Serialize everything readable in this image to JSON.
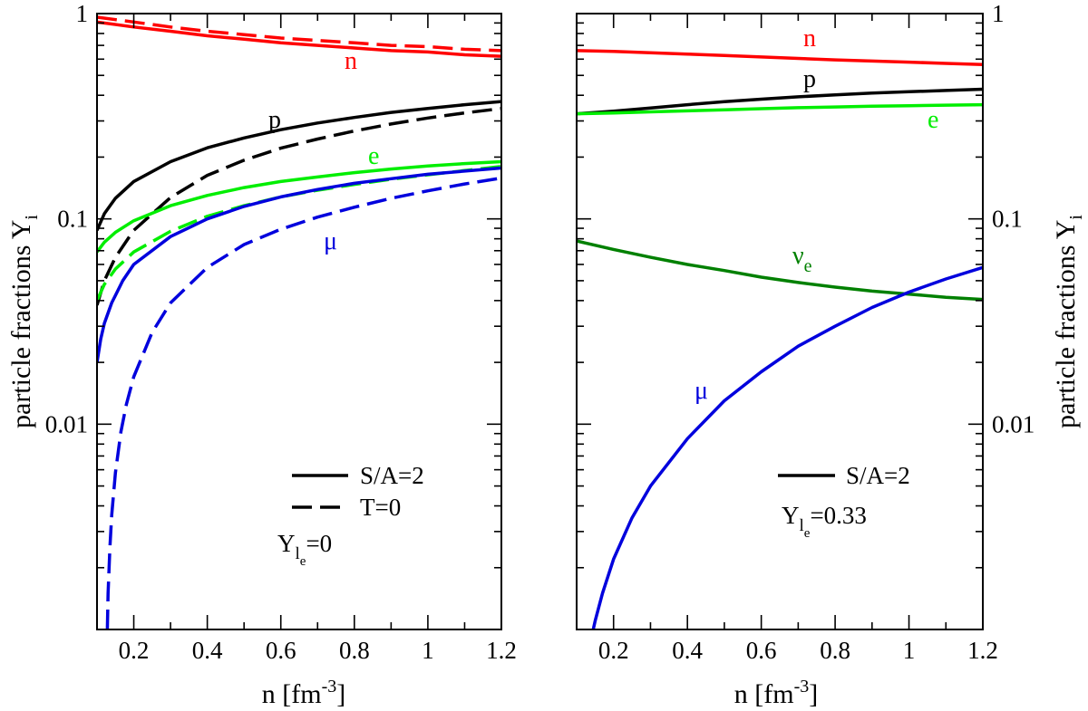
{
  "figure": {
    "ylabel_left": "particle fractions Y",
    "ylabel_right": "particle fractions Y",
    "ylabel_sub": "i",
    "xlabel_main": "n [fm",
    "xlabel_sup": "-3",
    "xlabel_close": "]"
  },
  "colors": {
    "n": "#ff0000",
    "p": "#000000",
    "e": "#00ee00",
    "mu": "#0000dd",
    "nu_e": "#008000"
  },
  "chart_data": [
    {
      "type": "line",
      "xlabel": "n [fm^-3]",
      "ylabel": "particle fractions Y_i",
      "xlim": [
        0.1,
        1.2
      ],
      "ylim": [
        0.001,
        1
      ],
      "yscale": "log",
      "xticks": [
        "0.2",
        "0.4",
        "0.6",
        "0.8",
        "1",
        "1.2"
      ],
      "yticks": [
        "0.01",
        "0.1",
        "1"
      ],
      "grid": false,
      "legend_position": "bottom-right",
      "legend": {
        "entries": [
          {
            "label": "S/A=2",
            "style": "solid"
          },
          {
            "label": "T=0",
            "style": "dashed"
          }
        ],
        "condition_main": "Y",
        "condition_sub": "l",
        "condition_subsub": "e",
        "condition_value": "=0"
      },
      "series": [
        {
          "name": "n",
          "style": "solid",
          "label": "n",
          "x": [
            0.1,
            0.2,
            0.3,
            0.4,
            0.5,
            0.6,
            0.7,
            0.8,
            0.9,
            1.0,
            1.1,
            1.2
          ],
          "y": [
            0.91,
            0.86,
            0.82,
            0.78,
            0.75,
            0.72,
            0.7,
            0.68,
            0.66,
            0.65,
            0.63,
            0.62
          ]
        },
        {
          "name": "n",
          "style": "dashed",
          "x": [
            0.1,
            0.2,
            0.3,
            0.4,
            0.5,
            0.6,
            0.7,
            0.8,
            0.9,
            1.0,
            1.1,
            1.2
          ],
          "y": [
            0.96,
            0.91,
            0.86,
            0.82,
            0.79,
            0.76,
            0.74,
            0.72,
            0.7,
            0.69,
            0.67,
            0.66
          ]
        },
        {
          "name": "p",
          "style": "solid",
          "label": "p",
          "x": [
            0.1,
            0.12,
            0.15,
            0.2,
            0.3,
            0.4,
            0.5,
            0.6,
            0.7,
            0.8,
            0.9,
            1.0,
            1.1,
            1.2
          ],
          "y": [
            0.088,
            0.106,
            0.126,
            0.152,
            0.19,
            0.222,
            0.248,
            0.272,
            0.293,
            0.312,
            0.33,
            0.345,
            0.36,
            0.373
          ]
        },
        {
          "name": "p",
          "style": "dashed",
          "x": [
            0.1,
            0.12,
            0.15,
            0.2,
            0.3,
            0.4,
            0.5,
            0.6,
            0.7,
            0.8,
            0.9,
            1.0,
            1.1,
            1.2
          ],
          "y": [
            0.038,
            0.05,
            0.065,
            0.088,
            0.127,
            0.163,
            0.193,
            0.221,
            0.245,
            0.268,
            0.29,
            0.31,
            0.328,
            0.345
          ]
        },
        {
          "name": "e",
          "style": "solid",
          "label": "e",
          "x": [
            0.1,
            0.12,
            0.15,
            0.2,
            0.3,
            0.4,
            0.5,
            0.6,
            0.7,
            0.8,
            0.9,
            1.0,
            1.1,
            1.2
          ],
          "y": [
            0.069,
            0.077,
            0.086,
            0.098,
            0.116,
            0.13,
            0.142,
            0.152,
            0.16,
            0.168,
            0.175,
            0.181,
            0.186,
            0.19
          ]
        },
        {
          "name": "e",
          "style": "dashed",
          "x": [
            0.1,
            0.12,
            0.15,
            0.2,
            0.3,
            0.4,
            0.5,
            0.6,
            0.7,
            0.8,
            0.9,
            1.0,
            1.1,
            1.2
          ],
          "y": [
            0.04,
            0.048,
            0.057,
            0.069,
            0.087,
            0.103,
            0.116,
            0.128,
            0.138,
            0.147,
            0.156,
            0.164,
            0.172,
            0.18
          ]
        },
        {
          "name": "μ",
          "style": "solid",
          "label": "μ",
          "x": [
            0.1,
            0.11,
            0.12,
            0.14,
            0.17,
            0.2,
            0.3,
            0.4,
            0.5,
            0.6,
            0.7,
            0.8,
            0.9,
            1.0,
            1.1,
            1.2
          ],
          "y": [
            0.02,
            0.026,
            0.031,
            0.039,
            0.05,
            0.06,
            0.082,
            0.1,
            0.115,
            0.128,
            0.139,
            0.149,
            0.157,
            0.165,
            0.171,
            0.177
          ]
        },
        {
          "name": "μ",
          "style": "dashed",
          "x": [
            0.128,
            0.13,
            0.135,
            0.14,
            0.15,
            0.165,
            0.18,
            0.2,
            0.25,
            0.3,
            0.4,
            0.5,
            0.6,
            0.7,
            0.8,
            0.9,
            1.0,
            1.1,
            1.2
          ],
          "y": [
            0.001,
            0.0015,
            0.0025,
            0.0036,
            0.0058,
            0.0092,
            0.0125,
            0.017,
            0.028,
            0.039,
            0.058,
            0.075,
            0.089,
            0.102,
            0.114,
            0.126,
            0.137,
            0.148,
            0.158
          ]
        }
      ]
    },
    {
      "type": "line",
      "xlabel": "n [fm^-3]",
      "ylabel": "particle fractions Y_i",
      "xlim": [
        0.1,
        1.2
      ],
      "ylim": [
        0.001,
        1
      ],
      "yscale": "log",
      "xticks": [
        "0.2",
        "0.4",
        "0.6",
        "0.8",
        "1",
        "1.2"
      ],
      "yticks": [
        "0.01",
        "0.1",
        "1"
      ],
      "grid": false,
      "legend_position": "bottom-right",
      "legend": {
        "entries": [
          {
            "label": "S/A=2",
            "style": "solid"
          }
        ],
        "condition_main": "Y",
        "condition_sub": "l",
        "condition_subsub": "e",
        "condition_value": "=0.33"
      },
      "series": [
        {
          "name": "n",
          "style": "solid",
          "label": "n",
          "x": [
            0.1,
            0.2,
            0.3,
            0.4,
            0.5,
            0.6,
            0.7,
            0.8,
            0.9,
            1.0,
            1.1,
            1.2
          ],
          "y": [
            0.66,
            0.655,
            0.645,
            0.635,
            0.625,
            0.615,
            0.605,
            0.595,
            0.587,
            0.58,
            0.572,
            0.565
          ]
        },
        {
          "name": "p",
          "style": "solid",
          "label": "p",
          "x": [
            0.1,
            0.2,
            0.3,
            0.4,
            0.5,
            0.6,
            0.7,
            0.8,
            0.9,
            1.0,
            1.1,
            1.2
          ],
          "y": [
            0.325,
            0.335,
            0.347,
            0.36,
            0.372,
            0.383,
            0.393,
            0.402,
            0.41,
            0.416,
            0.422,
            0.428
          ]
        },
        {
          "name": "e",
          "style": "solid",
          "label": "e",
          "x": [
            0.1,
            0.2,
            0.3,
            0.4,
            0.5,
            0.6,
            0.7,
            0.8,
            0.9,
            1.0,
            1.1,
            1.2
          ],
          "y": [
            0.325,
            0.328,
            0.332,
            0.336,
            0.34,
            0.344,
            0.348,
            0.351,
            0.354,
            0.356,
            0.358,
            0.36
          ]
        },
        {
          "name": "ν_e",
          "style": "solid",
          "label": "ν",
          "label_sub": "e",
          "x": [
            0.1,
            0.2,
            0.3,
            0.4,
            0.5,
            0.6,
            0.7,
            0.8,
            0.9,
            1.0,
            1.1,
            1.2
          ],
          "y": [
            0.078,
            0.071,
            0.065,
            0.06,
            0.056,
            0.052,
            0.049,
            0.0465,
            0.0445,
            0.043,
            0.0415,
            0.0405
          ]
        },
        {
          "name": "μ",
          "style": "solid",
          "label": "μ",
          "x": [
            0.145,
            0.15,
            0.17,
            0.2,
            0.25,
            0.3,
            0.4,
            0.5,
            0.6,
            0.7,
            0.8,
            0.9,
            1.0,
            1.1,
            1.2
          ],
          "y": [
            0.001,
            0.0011,
            0.0015,
            0.0022,
            0.0035,
            0.005,
            0.0085,
            0.013,
            0.018,
            0.024,
            0.03,
            0.037,
            0.044,
            0.051,
            0.058
          ]
        }
      ]
    }
  ]
}
